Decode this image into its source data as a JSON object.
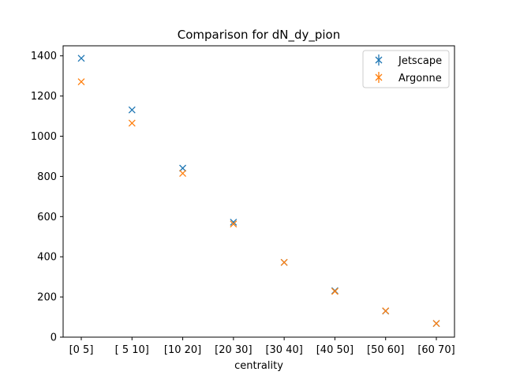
{
  "chart_data": {
    "type": "scatter",
    "title": "Comparison for dN_dy_pion",
    "xlabel": "centrality",
    "ylabel": "",
    "categories": [
      "[0 5]",
      "[ 5 10]",
      "[10 20]",
      "[20 30]",
      "[30 40]",
      "[40 50]",
      "[50 60]",
      "[60 70]"
    ],
    "ylim": [
      0,
      1450
    ],
    "yticks": [
      0,
      200,
      400,
      600,
      800,
      1000,
      1200,
      1400
    ],
    "grid": false,
    "legend_position": "top-right",
    "marker": "x",
    "series": [
      {
        "name": "Jetscape",
        "color": "#1f77b4",
        "values": [
          1388,
          1131,
          841,
          572,
          372,
          231,
          130,
          68
        ]
      },
      {
        "name": "Argonne",
        "color": "#ff7f0e",
        "values": [
          1271,
          1065,
          815,
          563,
          372,
          228,
          131,
          68
        ]
      }
    ]
  }
}
